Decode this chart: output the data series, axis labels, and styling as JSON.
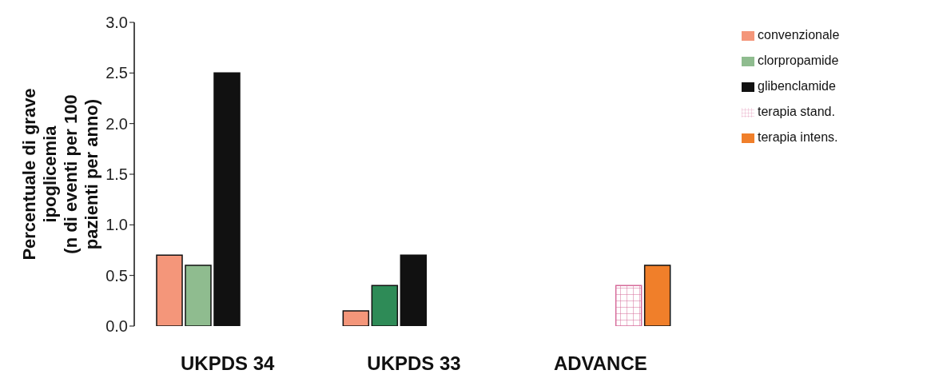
{
  "chart_data": {
    "type": "bar",
    "ylabel": "Percentuale di grave\nipoglicemia\n(n di eventi per 100\npazienti per anno)",
    "categories": [
      "UKPDS 34",
      "UKPDS 33",
      "ADVANCE"
    ],
    "series": [
      {
        "name": "convenzionale",
        "color": "#f4967a",
        "values": [
          0.7,
          0.15,
          null
        ]
      },
      {
        "name": "clorpropamide",
        "color": "#8fbc8f",
        "colors": [
          "#8fbc8f",
          "#2e8b57",
          null
        ],
        "values": [
          0.6,
          0.4,
          null
        ]
      },
      {
        "name": "glibenclamide",
        "color": "#111111",
        "values": [
          2.5,
          0.7,
          null
        ]
      },
      {
        "name": "terapia stand.",
        "color": "#d66b9a",
        "values": [
          null,
          null,
          0.4
        ]
      },
      {
        "name": "terapia intens.",
        "color": "#f07f2a",
        "values": [
          null,
          null,
          0.6
        ]
      }
    ],
    "ylim": [
      0,
      3
    ],
    "yticks": [
      {
        "value": 0,
        "label": "0.0"
      },
      {
        "value": 0.5,
        "label": "0.5"
      },
      {
        "value": 1,
        "label": "1.0"
      },
      {
        "value": 1.5,
        "label": "1.5"
      },
      {
        "value": 2,
        "label": "2.0"
      },
      {
        "value": 2.5,
        "label": "2.5"
      },
      {
        "value": 3,
        "label": "3.0"
      }
    ],
    "grid": false,
    "legend": "top right"
  }
}
